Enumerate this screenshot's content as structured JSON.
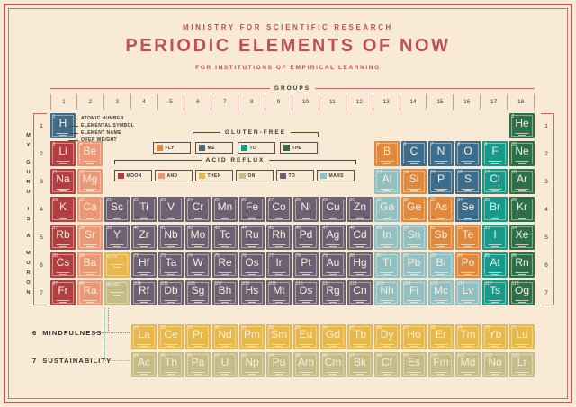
{
  "header": {
    "ministry": "MINISTRY FOR SCIENTIFIC RESEARCH",
    "title": "PERIODIC ELEMENTS OF NOW",
    "subtitle": "FOR INSTITUTIONS OF EMPIRICAL LEARNING"
  },
  "groups": {
    "label": "GROUPS",
    "numbers": [
      "1",
      "2",
      "3",
      "4",
      "5",
      "6",
      "7",
      "8",
      "9",
      "10",
      "11",
      "12",
      "13",
      "14",
      "15",
      "16",
      "17",
      "18"
    ]
  },
  "periods": [
    "1",
    "2",
    "3",
    "4",
    "5",
    "6",
    "7"
  ],
  "side_text": {
    "words": [
      "MY",
      "GURU",
      "IS",
      "A",
      "MORON"
    ]
  },
  "anatomy": {
    "labels": [
      "ATOMIC NUMBER",
      "ELEMENTAL SYMBOL",
      "ELEMENT NAME",
      "OVER WEIGHT"
    ]
  },
  "legend": {
    "gluten_free": {
      "title": "GLUTEN-FREE",
      "chips": [
        {
          "label": "FLY",
          "color_key": "fly"
        },
        {
          "label": "ME",
          "color_key": "me"
        },
        {
          "label": "TO",
          "color_key": "to_gf"
        },
        {
          "label": "THE",
          "color_key": "the"
        }
      ]
    },
    "acid_reflux": {
      "title": "ACID REFLUX",
      "chips": [
        {
          "label": "MOON",
          "color_key": "moon"
        },
        {
          "label": "AND",
          "color_key": "and"
        },
        {
          "label": "THEN",
          "color_key": "then"
        },
        {
          "label": "ON",
          "color_key": "on"
        },
        {
          "label": "TO",
          "color_key": "to_ar"
        },
        {
          "label": "MARS",
          "color_key": "mars"
        }
      ]
    }
  },
  "footer": {
    "rows": [
      {
        "number": "6",
        "label": "MINDFULNESS"
      },
      {
        "number": "7",
        "label": "SUSTAINABILITY"
      }
    ]
  },
  "colors": {
    "accent_red": "#c04f5c",
    "moon": "#b13e43",
    "and": "#eb9877",
    "then": "#e7b94c",
    "on": "#c4bc86",
    "to_ar": "#6b6173",
    "mars": "#92bfc2",
    "fly": "#e0883c",
    "me": "#3d6d8d",
    "to_gf": "#17998b",
    "the": "#2d6f4a"
  },
  "placeholders": [
    {
      "range": "57-71",
      "c": "then",
      "p": 6,
      "g": 3
    },
    {
      "range": "89-103",
      "c": "on",
      "p": 7,
      "g": 3
    }
  ],
  "elements": [
    {
      "n": 1,
      "s": "H",
      "c": "me",
      "p": 1,
      "g": 1
    },
    {
      "n": 2,
      "s": "He",
      "c": "the",
      "p": 1,
      "g": 18
    },
    {
      "n": 3,
      "s": "Li",
      "c": "moon",
      "p": 2,
      "g": 1
    },
    {
      "n": 4,
      "s": "Be",
      "c": "and",
      "p": 2,
      "g": 2
    },
    {
      "n": 5,
      "s": "B",
      "c": "fly",
      "p": 2,
      "g": 13
    },
    {
      "n": 6,
      "s": "C",
      "c": "me",
      "p": 2,
      "g": 14
    },
    {
      "n": 7,
      "s": "N",
      "c": "me",
      "p": 2,
      "g": 15
    },
    {
      "n": 8,
      "s": "O",
      "c": "me",
      "p": 2,
      "g": 16
    },
    {
      "n": 9,
      "s": "F",
      "c": "to_gf",
      "p": 2,
      "g": 17
    },
    {
      "n": 10,
      "s": "Ne",
      "c": "the",
      "p": 2,
      "g": 18
    },
    {
      "n": 11,
      "s": "Na",
      "c": "moon",
      "p": 3,
      "g": 1
    },
    {
      "n": 12,
      "s": "Mg",
      "c": "and",
      "p": 3,
      "g": 2
    },
    {
      "n": 13,
      "s": "Al",
      "c": "mars",
      "p": 3,
      "g": 13
    },
    {
      "n": 14,
      "s": "Si",
      "c": "fly",
      "p": 3,
      "g": 14
    },
    {
      "n": 15,
      "s": "P",
      "c": "me",
      "p": 3,
      "g": 15
    },
    {
      "n": 16,
      "s": "S",
      "c": "me",
      "p": 3,
      "g": 16
    },
    {
      "n": 17,
      "s": "Cl",
      "c": "to_gf",
      "p": 3,
      "g": 17
    },
    {
      "n": 18,
      "s": "Ar",
      "c": "the",
      "p": 3,
      "g": 18
    },
    {
      "n": 19,
      "s": "K",
      "c": "moon",
      "p": 4,
      "g": 1
    },
    {
      "n": 20,
      "s": "Ca",
      "c": "and",
      "p": 4,
      "g": 2
    },
    {
      "n": 21,
      "s": "Sc",
      "c": "to_ar",
      "p": 4,
      "g": 3
    },
    {
      "n": 22,
      "s": "Ti",
      "c": "to_ar",
      "p": 4,
      "g": 4
    },
    {
      "n": 23,
      "s": "V",
      "c": "to_ar",
      "p": 4,
      "g": 5
    },
    {
      "n": 24,
      "s": "Cr",
      "c": "to_ar",
      "p": 4,
      "g": 6
    },
    {
      "n": 25,
      "s": "Mn",
      "c": "to_ar",
      "p": 4,
      "g": 7
    },
    {
      "n": 26,
      "s": "Fe",
      "c": "to_ar",
      "p": 4,
      "g": 8
    },
    {
      "n": 27,
      "s": "Co",
      "c": "to_ar",
      "p": 4,
      "g": 9
    },
    {
      "n": 28,
      "s": "Ni",
      "c": "to_ar",
      "p": 4,
      "g": 10
    },
    {
      "n": 29,
      "s": "Cu",
      "c": "to_ar",
      "p": 4,
      "g": 11
    },
    {
      "n": 30,
      "s": "Zn",
      "c": "to_ar",
      "p": 4,
      "g": 12
    },
    {
      "n": 31,
      "s": "Ga",
      "c": "mars",
      "p": 4,
      "g": 13
    },
    {
      "n": 32,
      "s": "Ge",
      "c": "fly",
      "p": 4,
      "g": 14
    },
    {
      "n": 33,
      "s": "As",
      "c": "fly",
      "p": 4,
      "g": 15
    },
    {
      "n": 34,
      "s": "Se",
      "c": "me",
      "p": 4,
      "g": 16
    },
    {
      "n": 35,
      "s": "Br",
      "c": "to_gf",
      "p": 4,
      "g": 17
    },
    {
      "n": 36,
      "s": "Kr",
      "c": "the",
      "p": 4,
      "g": 18
    },
    {
      "n": 37,
      "s": "Rb",
      "c": "moon",
      "p": 5,
      "g": 1
    },
    {
      "n": 38,
      "s": "Sr",
      "c": "and",
      "p": 5,
      "g": 2
    },
    {
      "n": 39,
      "s": "Y",
      "c": "to_ar",
      "p": 5,
      "g": 3
    },
    {
      "n": 40,
      "s": "Zr",
      "c": "to_ar",
      "p": 5,
      "g": 4
    },
    {
      "n": 41,
      "s": "Nb",
      "c": "to_ar",
      "p": 5,
      "g": 5
    },
    {
      "n": 42,
      "s": "Mo",
      "c": "to_ar",
      "p": 5,
      "g": 6
    },
    {
      "n": 43,
      "s": "Tc",
      "c": "to_ar",
      "p": 5,
      "g": 7
    },
    {
      "n": 44,
      "s": "Ru",
      "c": "to_ar",
      "p": 5,
      "g": 8
    },
    {
      "n": 45,
      "s": "Rh",
      "c": "to_ar",
      "p": 5,
      "g": 9
    },
    {
      "n": 46,
      "s": "Pd",
      "c": "to_ar",
      "p": 5,
      "g": 10
    },
    {
      "n": 47,
      "s": "Ag",
      "c": "to_ar",
      "p": 5,
      "g": 11
    },
    {
      "n": 48,
      "s": "Cd",
      "c": "to_ar",
      "p": 5,
      "g": 12
    },
    {
      "n": 49,
      "s": "In",
      "c": "mars",
      "p": 5,
      "g": 13
    },
    {
      "n": 50,
      "s": "Sn",
      "c": "mars",
      "p": 5,
      "g": 14
    },
    {
      "n": 51,
      "s": "Sb",
      "c": "fly",
      "p": 5,
      "g": 15
    },
    {
      "n": 52,
      "s": "Te",
      "c": "fly",
      "p": 5,
      "g": 16
    },
    {
      "n": 53,
      "s": "I",
      "c": "to_gf",
      "p": 5,
      "g": 17
    },
    {
      "n": 54,
      "s": "Xe",
      "c": "the",
      "p": 5,
      "g": 18
    },
    {
      "n": 55,
      "s": "Cs",
      "c": "moon",
      "p": 6,
      "g": 1
    },
    {
      "n": 56,
      "s": "Ba",
      "c": "and",
      "p": 6,
      "g": 2
    },
    {
      "n": 72,
      "s": "Hf",
      "c": "to_ar",
      "p": 6,
      "g": 4
    },
    {
      "n": 73,
      "s": "Ta",
      "c": "to_ar",
      "p": 6,
      "g": 5
    },
    {
      "n": 74,
      "s": "W",
      "c": "to_ar",
      "p": 6,
      "g": 6
    },
    {
      "n": 75,
      "s": "Re",
      "c": "to_ar",
      "p": 6,
      "g": 7
    },
    {
      "n": 76,
      "s": "Os",
      "c": "to_ar",
      "p": 6,
      "g": 8
    },
    {
      "n": 77,
      "s": "Ir",
      "c": "to_ar",
      "p": 6,
      "g": 9
    },
    {
      "n": 78,
      "s": "Pt",
      "c": "to_ar",
      "p": 6,
      "g": 10
    },
    {
      "n": 79,
      "s": "Au",
      "c": "to_ar",
      "p": 6,
      "g": 11
    },
    {
      "n": 80,
      "s": "Hg",
      "c": "to_ar",
      "p": 6,
      "g": 12
    },
    {
      "n": 81,
      "s": "Tl",
      "c": "mars",
      "p": 6,
      "g": 13
    },
    {
      "n": 82,
      "s": "Pb",
      "c": "mars",
      "p": 6,
      "g": 14
    },
    {
      "n": 83,
      "s": "Bi",
      "c": "mars",
      "p": 6,
      "g": 15
    },
    {
      "n": 84,
      "s": "Po",
      "c": "fly",
      "p": 6,
      "g": 16
    },
    {
      "n": 85,
      "s": "At",
      "c": "to_gf",
      "p": 6,
      "g": 17
    },
    {
      "n": 86,
      "s": "Rn",
      "c": "the",
      "p": 6,
      "g": 18
    },
    {
      "n": 87,
      "s": "Fr",
      "c": "moon",
      "p": 7,
      "g": 1
    },
    {
      "n": 88,
      "s": "Ra",
      "c": "and",
      "p": 7,
      "g": 2
    },
    {
      "n": 104,
      "s": "Rf",
      "c": "to_ar",
      "p": 7,
      "g": 4
    },
    {
      "n": 105,
      "s": "Db",
      "c": "to_ar",
      "p": 7,
      "g": 5
    },
    {
      "n": 106,
      "s": "Sg",
      "c": "to_ar",
      "p": 7,
      "g": 6
    },
    {
      "n": 107,
      "s": "Bh",
      "c": "to_ar",
      "p": 7,
      "g": 7
    },
    {
      "n": 108,
      "s": "Hs",
      "c": "to_ar",
      "p": 7,
      "g": 8
    },
    {
      "n": 109,
      "s": "Mt",
      "c": "to_ar",
      "p": 7,
      "g": 9
    },
    {
      "n": 110,
      "s": "Ds",
      "c": "to_ar",
      "p": 7,
      "g": 10
    },
    {
      "n": 111,
      "s": "Rg",
      "c": "to_ar",
      "p": 7,
      "g": 11
    },
    {
      "n": 112,
      "s": "Cn",
      "c": "to_ar",
      "p": 7,
      "g": 12
    },
    {
      "n": 113,
      "s": "Nh",
      "c": "mars",
      "p": 7,
      "g": 13
    },
    {
      "n": 114,
      "s": "Fl",
      "c": "mars",
      "p": 7,
      "g": 14
    },
    {
      "n": 115,
      "s": "Mc",
      "c": "mars",
      "p": 7,
      "g": 15
    },
    {
      "n": 116,
      "s": "Lv",
      "c": "mars",
      "p": 7,
      "g": 16
    },
    {
      "n": 117,
      "s": "Ts",
      "c": "to_gf",
      "p": 7,
      "g": 17
    },
    {
      "n": 118,
      "s": "Og",
      "c": "the",
      "p": 7,
      "g": 18
    }
  ],
  "lanthanides": [
    {
      "n": 57,
      "s": "La",
      "c": "then"
    },
    {
      "n": 58,
      "s": "Ce",
      "c": "then"
    },
    {
      "n": 59,
      "s": "Pr",
      "c": "then"
    },
    {
      "n": 60,
      "s": "Nd",
      "c": "then"
    },
    {
      "n": 61,
      "s": "Pm",
      "c": "then"
    },
    {
      "n": 62,
      "s": "Sm",
      "c": "then"
    },
    {
      "n": 63,
      "s": "Eu",
      "c": "then"
    },
    {
      "n": 64,
      "s": "Gd",
      "c": "then"
    },
    {
      "n": 65,
      "s": "Tb",
      "c": "then"
    },
    {
      "n": 66,
      "s": "Dy",
      "c": "then"
    },
    {
      "n": 67,
      "s": "Ho",
      "c": "then"
    },
    {
      "n": 68,
      "s": "Er",
      "c": "then"
    },
    {
      "n": 69,
      "s": "Tm",
      "c": "then"
    },
    {
      "n": 70,
      "s": "Yb",
      "c": "then"
    },
    {
      "n": 71,
      "s": "Lu",
      "c": "then"
    }
  ],
  "actinides": [
    {
      "n": 89,
      "s": "Ac",
      "c": "on"
    },
    {
      "n": 90,
      "s": "Th",
      "c": "on"
    },
    {
      "n": 91,
      "s": "Pa",
      "c": "on"
    },
    {
      "n": 92,
      "s": "U",
      "c": "on"
    },
    {
      "n": 93,
      "s": "Np",
      "c": "on"
    },
    {
      "n": 94,
      "s": "Pu",
      "c": "on"
    },
    {
      "n": 95,
      "s": "Am",
      "c": "on"
    },
    {
      "n": 96,
      "s": "Cm",
      "c": "on"
    },
    {
      "n": 97,
      "s": "Bk",
      "c": "on"
    },
    {
      "n": 98,
      "s": "Cf",
      "c": "on"
    },
    {
      "n": 99,
      "s": "Es",
      "c": "on"
    },
    {
      "n": 100,
      "s": "Fm",
      "c": "on"
    },
    {
      "n": 101,
      "s": "Md",
      "c": "on"
    },
    {
      "n": 102,
      "s": "No",
      "c": "on"
    },
    {
      "n": 103,
      "s": "Lr",
      "c": "on"
    }
  ]
}
